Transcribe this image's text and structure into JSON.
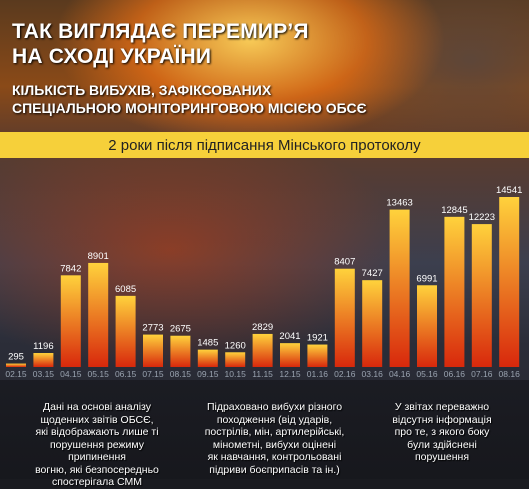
{
  "header": {
    "title_line1": "ТАК ВИГЛЯДАЄ ПЕРЕМИР’Я",
    "title_line2": "НА СХОДІ УКРАЇНИ",
    "subtitle_line1": "КІЛЬКІСТЬ ВИБУХІВ, ЗАФІКСОВАНИХ",
    "subtitle_line2": "СПЕЦІАЛЬНОЮ МОНІТОРИНГОВОЮ МІСІЄЮ ОБСЄ"
  },
  "banner": {
    "text": "2 роки після підписання Мінського протоколу"
  },
  "chart_data": {
    "type": "bar",
    "categories": [
      "02.15",
      "03.15",
      "04.15",
      "05.15",
      "06.15",
      "07.15",
      "08.15",
      "09.15",
      "10.15",
      "11.15",
      "12.15",
      "01.16",
      "02.16",
      "03.16",
      "04.16",
      "05.16",
      "06.16",
      "07.16",
      "08.16"
    ],
    "values": [
      295,
      1196,
      7842,
      8901,
      6085,
      2773,
      2675,
      1485,
      1260,
      2829,
      2041,
      1921,
      8407,
      7427,
      13463,
      6991,
      12845,
      12223,
      14541
    ],
    "ylim": [
      0,
      14541
    ],
    "grid": false,
    "colors": {
      "bar_top": "#ffd23c",
      "bar_bottom": "#d8280c",
      "label": "#ffffff",
      "tick": "#9aa3b0"
    }
  },
  "footnotes": {
    "left": [
      "Дані на основі аналізу",
      "щоденних звітів ОБСЄ,",
      "які відображають лише ті",
      "порушення режиму припинення",
      "вогню, які безпосередньо",
      "спостерігала СММ"
    ],
    "middle": [
      "Підраховано вибухи різного",
      "походження (від ударів,",
      "пострілів, мін, артилерійські,",
      "мінометні, вибухи оцінені",
      "як навчання, контрольовані",
      "підриви боєприпасів та ін.)"
    ],
    "right": [
      "У звітах переважно",
      "відсутня інформація",
      "про те, з якого боку",
      "були здійснені",
      "порушення"
    ]
  }
}
